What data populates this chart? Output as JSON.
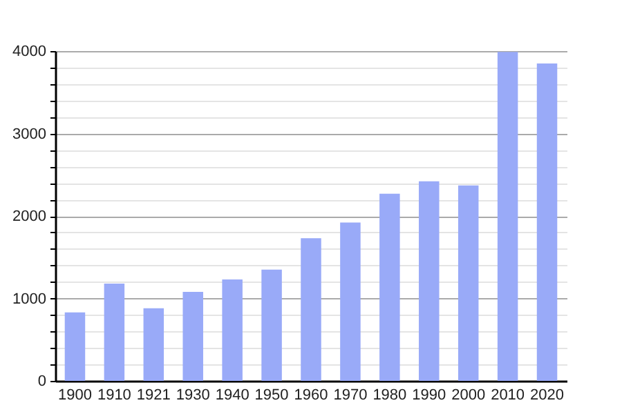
{
  "chart_data": {
    "type": "bar",
    "categories": [
      "1900",
      "1910",
      "1921",
      "1930",
      "1940",
      "1950",
      "1960",
      "1970",
      "1980",
      "1990",
      "2000",
      "2010",
      "2020"
    ],
    "values": [
      830,
      1180,
      880,
      1080,
      1230,
      1350,
      1730,
      1920,
      2270,
      2420,
      2370,
      3990,
      3850
    ],
    "color": "#99aaf8",
    "ylim": [
      0,
      4000
    ],
    "yticks": [
      0,
      {
        "value": 200,
        "label": null
      },
      {
        "value": 400,
        "label": null
      },
      {
        "value": 600,
        "label": null
      },
      {
        "value": 800,
        "label": null
      },
      1000,
      {
        "value": 1200,
        "label": null
      },
      {
        "value": 1400,
        "label": null
      },
      {
        "value": 1600,
        "label": null
      },
      {
        "value": 1800,
        "label": null
      },
      2000,
      {
        "value": 2200,
        "label": null
      },
      {
        "value": 2400,
        "label": null
      },
      {
        "value": 2600,
        "label": null
      },
      {
        "value": 2800,
        "label": null
      },
      3000,
      {
        "value": 3200,
        "label": null
      },
      {
        "value": 3400,
        "label": null
      },
      {
        "value": 3600,
        "label": null
      },
      {
        "value": 3800,
        "label": null
      },
      4000
    ],
    "grid": "y"
  }
}
